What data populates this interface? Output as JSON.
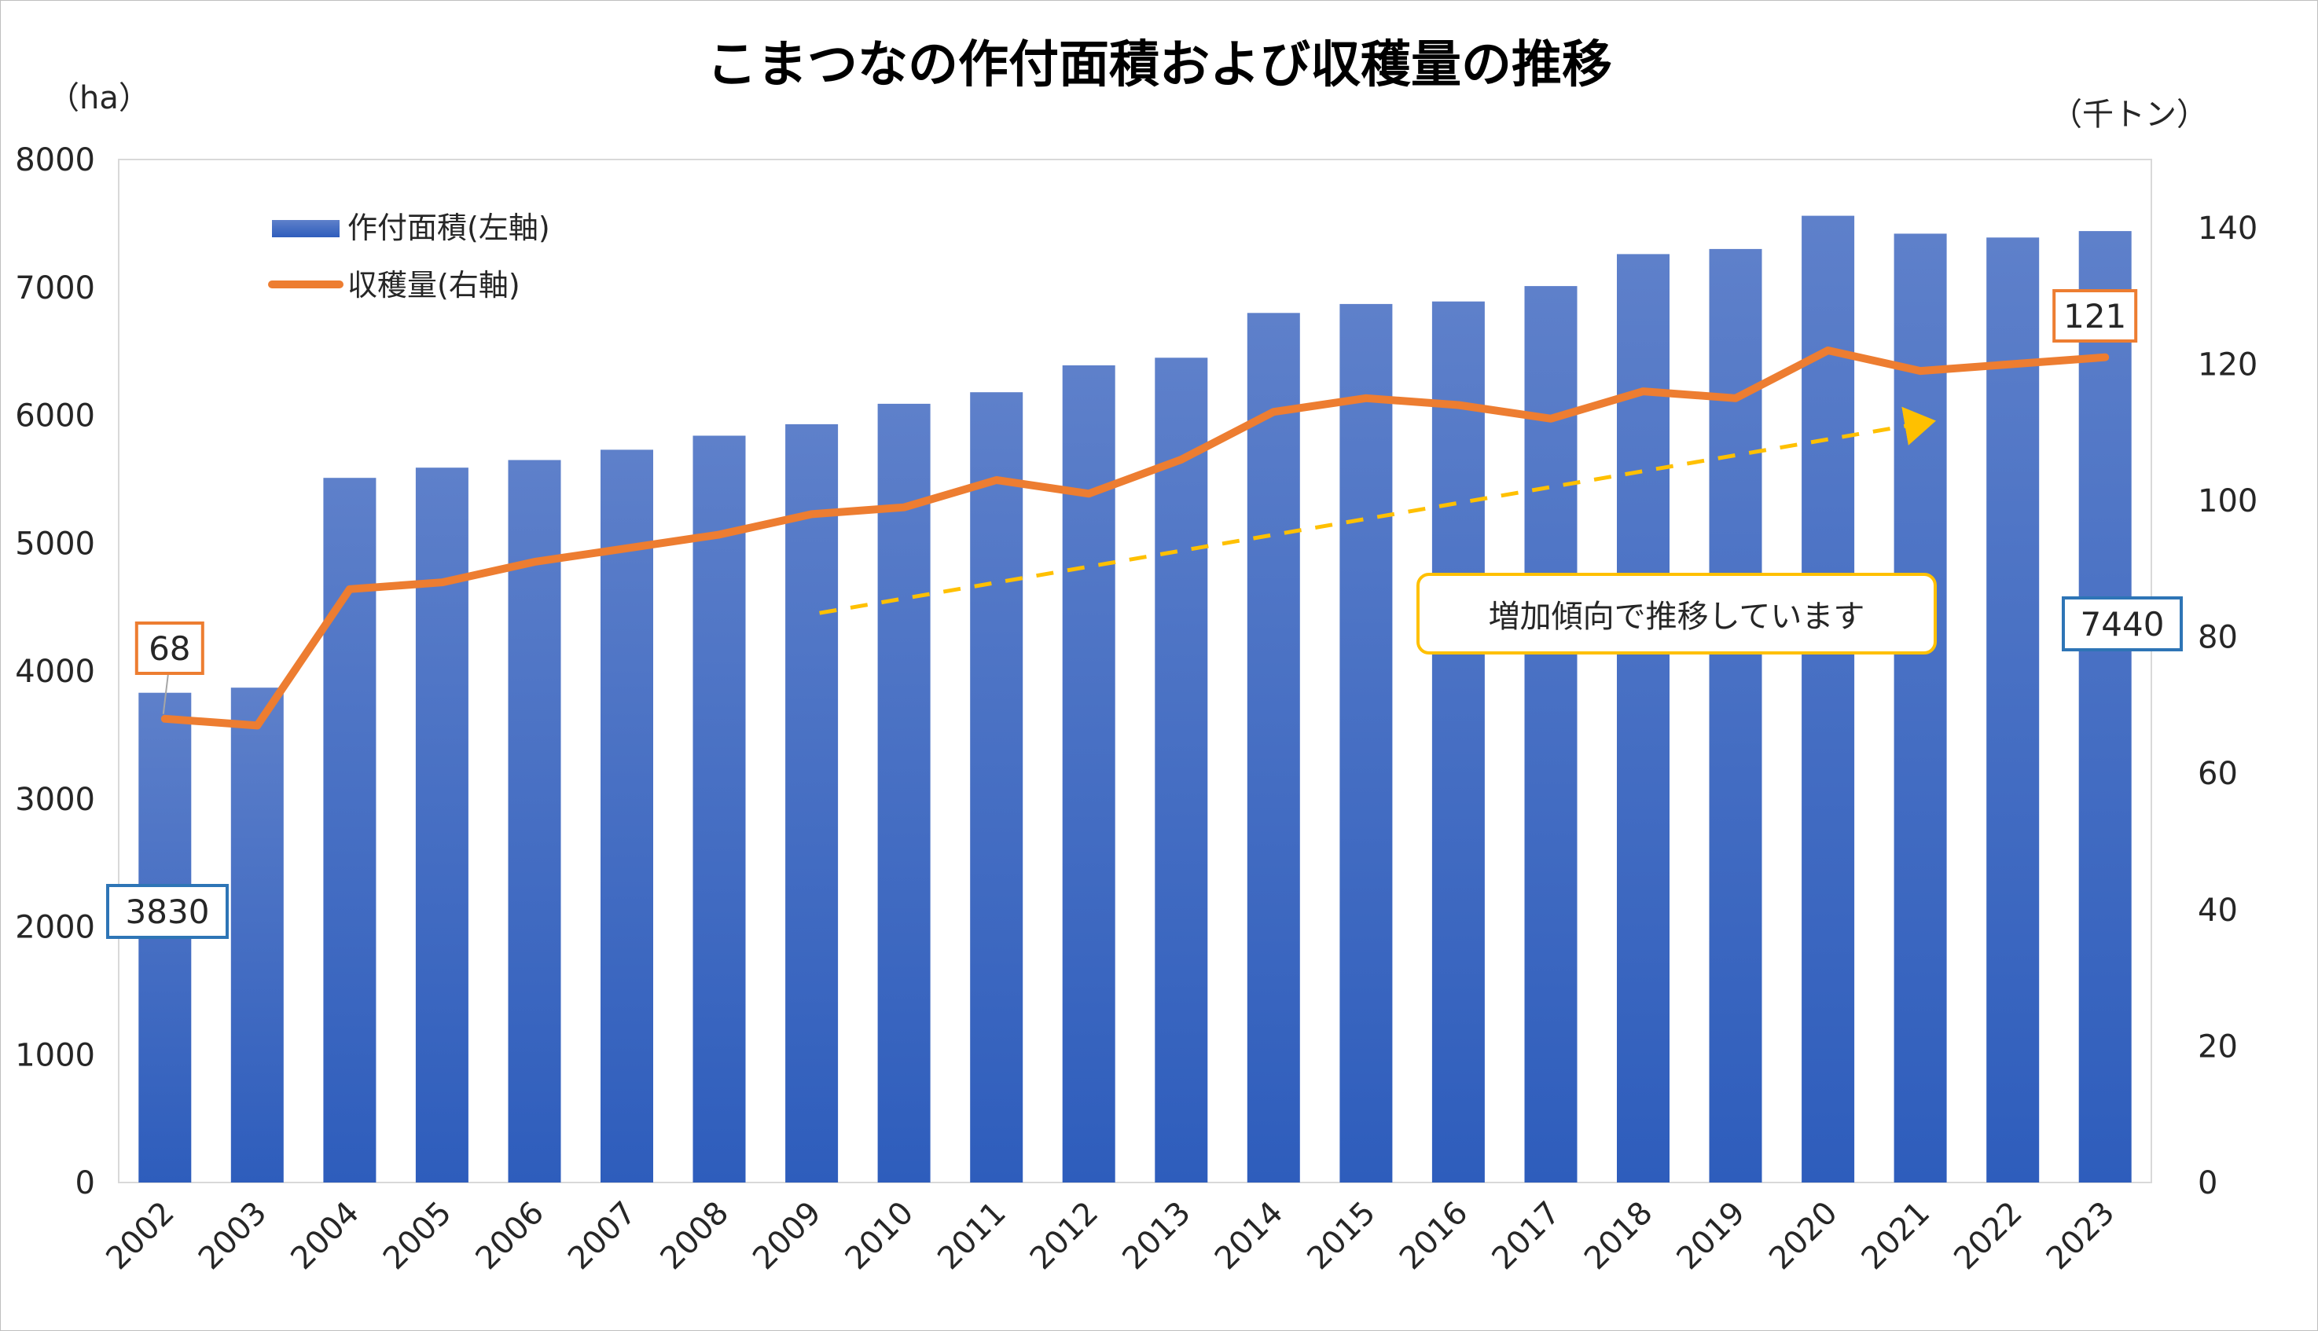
{
  "chart_data": {
    "type": "bar",
    "title": "こまつなの作付面積および収穫量の推移",
    "y_left_unit": "（ha）",
    "y_right_unit": "（千トン）",
    "categories": [
      "2002",
      "2003",
      "2004",
      "2005",
      "2006",
      "2007",
      "2008",
      "2009",
      "2010",
      "2011",
      "2012",
      "2013",
      "2014",
      "2015",
      "2016",
      "2017",
      "2018",
      "2019",
      "2020",
      "2021",
      "2022",
      "2023"
    ],
    "series": [
      {
        "name": "作付面積(左軸)",
        "type": "bar",
        "axis": "left",
        "values": [
          3830,
          3870,
          5510,
          5590,
          5650,
          5730,
          5840,
          5930,
          6090,
          6180,
          6390,
          6450,
          6800,
          6870,
          6890,
          7010,
          7260,
          7300,
          7560,
          7420,
          7390,
          7440
        ]
      },
      {
        "name": "収穫量(右軸)",
        "type": "line",
        "axis": "right",
        "values": [
          68,
          67,
          87,
          88,
          91,
          93,
          95,
          98,
          99,
          103,
          101,
          106,
          113,
          115,
          114,
          112,
          116,
          115,
          122,
          119,
          120,
          121
        ]
      }
    ],
    "y_left_ticks": [
      0,
      1000,
      2000,
      3000,
      4000,
      5000,
      6000,
      7000,
      8000
    ],
    "y_right_ticks": [
      0,
      20,
      40,
      60,
      80,
      100,
      120,
      140
    ],
    "ylim_left": [
      0,
      8000
    ],
    "ylim_right": [
      0,
      150
    ],
    "legend_position": "top-left",
    "grid": false,
    "data_labels": {
      "first_line": "68",
      "last_line": "121",
      "first_bar": "3830",
      "last_bar": "7440"
    },
    "annotation": "増加傾向で推移しています",
    "colors": {
      "bar_top": "#5e80ca",
      "bar_bottom": "#2e5dbc",
      "line": "#ed7d31",
      "trend_arrow": "#ffc000",
      "bar_label_border": "#2e75b6",
      "line_label_border": "#ed7d31"
    }
  }
}
